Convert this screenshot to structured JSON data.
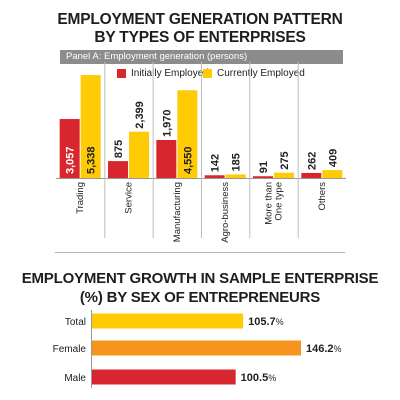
{
  "colors": {
    "initially": "#d7262e",
    "currently": "#ffcb05",
    "total": "#ffcb05",
    "female": "#f7941d",
    "male": "#d7262e"
  },
  "chart_data": [
    {
      "type": "bar",
      "title_line1": "EMPLOYMENT GENERATION PATTERN",
      "title_line2": "BY TYPES OF ENTERPRISES",
      "panel_label": "Panel A: Employment generation (persons)",
      "categories": [
        "Trading",
        "Service",
        "Manufacturing",
        "Agro-business",
        "More than One type",
        "Others"
      ],
      "category_lines": [
        [
          "Trading"
        ],
        [
          "Service"
        ],
        [
          "Manufacturing"
        ],
        [
          "Agro-business"
        ],
        [
          "More than",
          "One type"
        ],
        [
          "Others"
        ]
      ],
      "series": [
        {
          "name": "Initially Employed",
          "values": [
            3057,
            875,
            1970,
            142,
            91,
            262
          ]
        },
        {
          "name": "Currently Employed",
          "values": [
            5338,
            2399,
            4550,
            185,
            275,
            409
          ]
        }
      ],
      "value_labels": [
        [
          "3,057",
          "875",
          "1,970",
          "142",
          "91",
          "262"
        ],
        [
          "5,338",
          "2,399",
          "4,550",
          "185",
          "275",
          "409"
        ]
      ],
      "ylim": [
        0,
        5600
      ]
    },
    {
      "type": "bar",
      "orientation": "horizontal",
      "title_line1": "EMPLOYMENT GROWTH IN SAMPLE ENTERPRISE",
      "title_line2": "(%) BY SEX OF ENTREPRENEURS",
      "categories": [
        "Total",
        "Female",
        "Male"
      ],
      "values": [
        105.7,
        146.2,
        100.5
      ],
      "value_labels": [
        "105.7",
        "146.2",
        "100.5"
      ],
      "unit": "%",
      "xlim": [
        0,
        150
      ]
    }
  ]
}
